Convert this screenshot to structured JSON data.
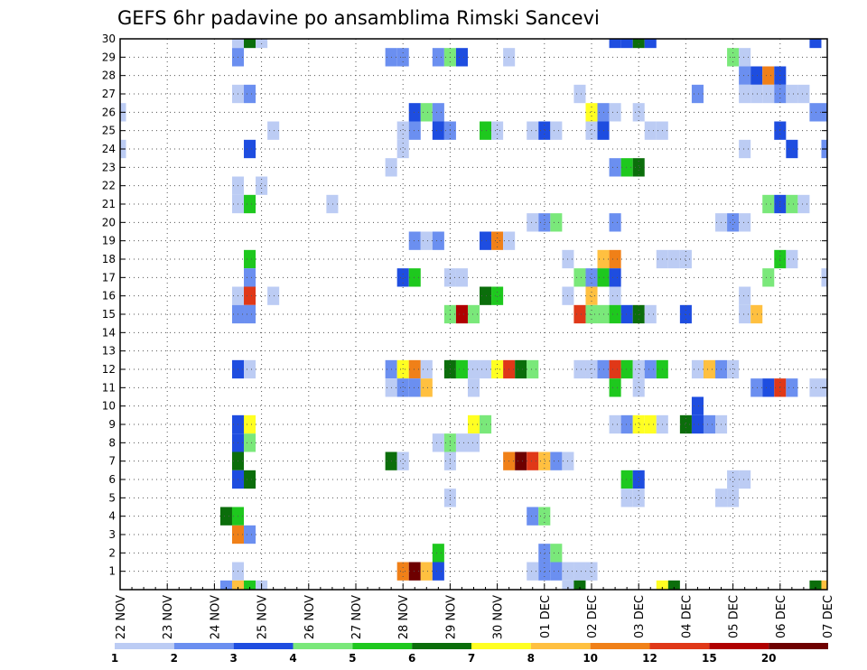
{
  "chart_data": {
    "type": "heatmap",
    "title": "GEFS 6hr padavine po ansamblima Rimski Sancevi",
    "xlabel": "",
    "ylabel": "",
    "x_ticks": [
      "22 NOV",
      "23 NOV",
      "24 NOV",
      "25 NOV",
      "26 NOV",
      "27 NOV",
      "28 NOV",
      "29 NOV",
      "30 NOV",
      "01 DEC",
      "02 DEC",
      "03 DEC",
      "04 DEC",
      "05 DEC",
      "06 DEC",
      "07 DEC"
    ],
    "x_unit": "6-hour steps from 22 NOV 00Z",
    "xlim": [
      0,
      60
    ],
    "y_ticks": [
      1,
      2,
      3,
      4,
      5,
      6,
      7,
      8,
      9,
      10,
      11,
      12,
      13,
      14,
      15,
      16,
      17,
      18,
      19,
      20,
      21,
      22,
      23,
      24,
      25,
      26,
      27,
      28,
      29,
      30
    ],
    "ylim": [
      0,
      30
    ],
    "grid": true,
    "colorbar": {
      "labels": [
        "1",
        "2",
        "3",
        "4",
        "5",
        "6",
        "7",
        "8",
        "10",
        "12",
        "15",
        "20"
      ],
      "colors": [
        "#bcccf4",
        "#6b8ff0",
        "#1e4de0",
        "#7ae87a",
        "#1ec81e",
        "#0b6e0b",
        "#ffff22",
        "#ffc040",
        "#f08018",
        "#e03818",
        "#b00000",
        "#6e0000"
      ]
    },
    "cells": [
      [
        10,
        30,
        1
      ],
      [
        11,
        30,
        6
      ],
      [
        12,
        30,
        1
      ],
      [
        42,
        30,
        3
      ],
      [
        43,
        30,
        3
      ],
      [
        44,
        30,
        6
      ],
      [
        45,
        30,
        3
      ],
      [
        59,
        30,
        3
      ],
      [
        10,
        29,
        2
      ],
      [
        23,
        29,
        2
      ],
      [
        24,
        29,
        2
      ],
      [
        27,
        29,
        2
      ],
      [
        28,
        29,
        4
      ],
      [
        29,
        29,
        3
      ],
      [
        33,
        29,
        1
      ],
      [
        52,
        29,
        4
      ],
      [
        53,
        29,
        1
      ],
      [
        53,
        28,
        2
      ],
      [
        54,
        28,
        3
      ],
      [
        55,
        28,
        9
      ],
      [
        56,
        28,
        3
      ],
      [
        10,
        27,
        1
      ],
      [
        11,
        27,
        2
      ],
      [
        39,
        27,
        1
      ],
      [
        49,
        27,
        2
      ],
      [
        53,
        27,
        1
      ],
      [
        54,
        27,
        1
      ],
      [
        55,
        27,
        1
      ],
      [
        56,
        27,
        2
      ],
      [
        57,
        27,
        1
      ],
      [
        58,
        27,
        1
      ],
      [
        0,
        26,
        1
      ],
      [
        25,
        26,
        3
      ],
      [
        26,
        26,
        4
      ],
      [
        27,
        26,
        2
      ],
      [
        40,
        26,
        7
      ],
      [
        41,
        26,
        2
      ],
      [
        42,
        26,
        1
      ],
      [
        44,
        26,
        1
      ],
      [
        59,
        26,
        2
      ],
      [
        60,
        26,
        2
      ],
      [
        13,
        25,
        1
      ],
      [
        24,
        25,
        1
      ],
      [
        25,
        25,
        2
      ],
      [
        27,
        25,
        3
      ],
      [
        28,
        25,
        2
      ],
      [
        31,
        25,
        5
      ],
      [
        32,
        25,
        1
      ],
      [
        35,
        25,
        1
      ],
      [
        36,
        25,
        3
      ],
      [
        37,
        25,
        1
      ],
      [
        40,
        25,
        1
      ],
      [
        41,
        25,
        3
      ],
      [
        45,
        25,
        1
      ],
      [
        46,
        25,
        1
      ],
      [
        56,
        25,
        3
      ],
      [
        0,
        24,
        1
      ],
      [
        11,
        24,
        3
      ],
      [
        24,
        24,
        1
      ],
      [
        53,
        24,
        1
      ],
      [
        57,
        24,
        3
      ],
      [
        60,
        24,
        2
      ],
      [
        23,
        23,
        1
      ],
      [
        42,
        23,
        2
      ],
      [
        43,
        23,
        5
      ],
      [
        44,
        23,
        6
      ],
      [
        10,
        22,
        1
      ],
      [
        12,
        22,
        1
      ],
      [
        10,
        21,
        1
      ],
      [
        11,
        21,
        5
      ],
      [
        18,
        21,
        1
      ],
      [
        55,
        21,
        4
      ],
      [
        56,
        21,
        3
      ],
      [
        57,
        21,
        4
      ],
      [
        58,
        21,
        1
      ],
      [
        35,
        20,
        1
      ],
      [
        36,
        20,
        2
      ],
      [
        37,
        20,
        4
      ],
      [
        42,
        20,
        2
      ],
      [
        51,
        20,
        1
      ],
      [
        52,
        20,
        2
      ],
      [
        53,
        20,
        1
      ],
      [
        25,
        19,
        2
      ],
      [
        26,
        19,
        1
      ],
      [
        27,
        19,
        2
      ],
      [
        31,
        19,
        3
      ],
      [
        32,
        19,
        9
      ],
      [
        33,
        19,
        1
      ],
      [
        11,
        18,
        5
      ],
      [
        38,
        18,
        1
      ],
      [
        41,
        18,
        8
      ],
      [
        42,
        18,
        9
      ],
      [
        46,
        18,
        1
      ],
      [
        47,
        18,
        1
      ],
      [
        48,
        18,
        1
      ],
      [
        56,
        18,
        5
      ],
      [
        57,
        18,
        1
      ],
      [
        11,
        17,
        2
      ],
      [
        24,
        17,
        3
      ],
      [
        25,
        17,
        5
      ],
      [
        28,
        17,
        1
      ],
      [
        29,
        17,
        1
      ],
      [
        39,
        17,
        4
      ],
      [
        40,
        17,
        2
      ],
      [
        41,
        17,
        5
      ],
      [
        42,
        17,
        3
      ],
      [
        55,
        17,
        4
      ],
      [
        60,
        17,
        1
      ],
      [
        10,
        16,
        1
      ],
      [
        11,
        16,
        10
      ],
      [
        13,
        16,
        1
      ],
      [
        31,
        16,
        6
      ],
      [
        32,
        16,
        5
      ],
      [
        38,
        16,
        1
      ],
      [
        40,
        16,
        8
      ],
      [
        42,
        16,
        1
      ],
      [
        53,
        16,
        1
      ],
      [
        10,
        15,
        2
      ],
      [
        11,
        15,
        2
      ],
      [
        28,
        15,
        4
      ],
      [
        29,
        15,
        11
      ],
      [
        30,
        15,
        4
      ],
      [
        39,
        15,
        10
      ],
      [
        40,
        15,
        4
      ],
      [
        41,
        15,
        4
      ],
      [
        42,
        15,
        5
      ],
      [
        43,
        15,
        3
      ],
      [
        44,
        15,
        6
      ],
      [
        45,
        15,
        1
      ],
      [
        48,
        15,
        3
      ],
      [
        53,
        15,
        1
      ],
      [
        54,
        15,
        8
      ],
      [
        10,
        12,
        3
      ],
      [
        11,
        12,
        1
      ],
      [
        23,
        12,
        2
      ],
      [
        24,
        12,
        7
      ],
      [
        25,
        12,
        9
      ],
      [
        26,
        12,
        1
      ],
      [
        28,
        12,
        6
      ],
      [
        29,
        12,
        5
      ],
      [
        30,
        12,
        1
      ],
      [
        31,
        12,
        1
      ],
      [
        32,
        12,
        7
      ],
      [
        33,
        12,
        10
      ],
      [
        34,
        12,
        6
      ],
      [
        35,
        12,
        4
      ],
      [
        39,
        12,
        1
      ],
      [
        40,
        12,
        1
      ],
      [
        41,
        12,
        2
      ],
      [
        42,
        12,
        10
      ],
      [
        43,
        12,
        5
      ],
      [
        44,
        12,
        1
      ],
      [
        45,
        12,
        2
      ],
      [
        46,
        12,
        5
      ],
      [
        49,
        12,
        1
      ],
      [
        50,
        12,
        8
      ],
      [
        51,
        12,
        2
      ],
      [
        52,
        12,
        1
      ],
      [
        23,
        11,
        1
      ],
      [
        24,
        11,
        2
      ],
      [
        25,
        11,
        2
      ],
      [
        26,
        11,
        8
      ],
      [
        30,
        11,
        1
      ],
      [
        42,
        11,
        5
      ],
      [
        44,
        11,
        1
      ],
      [
        54,
        11,
        2
      ],
      [
        55,
        11,
        3
      ],
      [
        56,
        11,
        10
      ],
      [
        57,
        11,
        2
      ],
      [
        59,
        11,
        1
      ],
      [
        60,
        11,
        1
      ],
      [
        49,
        10,
        3
      ],
      [
        10,
        9,
        3
      ],
      [
        11,
        9,
        7
      ],
      [
        30,
        9,
        7
      ],
      [
        31,
        9,
        4
      ],
      [
        42,
        9,
        1
      ],
      [
        43,
        9,
        2
      ],
      [
        44,
        9,
        7
      ],
      [
        45,
        9,
        7
      ],
      [
        46,
        9,
        1
      ],
      [
        48,
        9,
        6
      ],
      [
        49,
        9,
        3
      ],
      [
        50,
        9,
        2
      ],
      [
        51,
        9,
        1
      ],
      [
        10,
        8,
        3
      ],
      [
        11,
        8,
        4
      ],
      [
        27,
        8,
        1
      ],
      [
        28,
        8,
        4
      ],
      [
        29,
        8,
        1
      ],
      [
        30,
        8,
        1
      ],
      [
        10,
        7,
        6
      ],
      [
        23,
        7,
        6
      ],
      [
        24,
        7,
        1
      ],
      [
        28,
        7,
        1
      ],
      [
        33,
        7,
        9
      ],
      [
        34,
        7,
        12
      ],
      [
        35,
        7,
        10
      ],
      [
        36,
        7,
        8
      ],
      [
        37,
        7,
        2
      ],
      [
        38,
        7,
        1
      ],
      [
        10,
        6,
        3
      ],
      [
        11,
        6,
        6
      ],
      [
        43,
        6,
        5
      ],
      [
        44,
        6,
        3
      ],
      [
        52,
        6,
        1
      ],
      [
        53,
        6,
        1
      ],
      [
        28,
        5,
        1
      ],
      [
        43,
        5,
        1
      ],
      [
        44,
        5,
        1
      ],
      [
        51,
        5,
        1
      ],
      [
        52,
        5,
        1
      ],
      [
        9,
        4,
        6
      ],
      [
        10,
        4,
        5
      ],
      [
        35,
        4,
        2
      ],
      [
        36,
        4,
        4
      ],
      [
        10,
        3,
        9
      ],
      [
        11,
        3,
        2
      ],
      [
        27,
        2,
        5
      ],
      [
        36,
        2,
        2
      ],
      [
        37,
        2,
        4
      ],
      [
        10,
        1,
        1
      ],
      [
        24,
        1,
        9
      ],
      [
        25,
        1,
        12
      ],
      [
        26,
        1,
        8
      ],
      [
        27,
        1,
        3
      ],
      [
        35,
        1,
        1
      ],
      [
        36,
        1,
        2
      ],
      [
        37,
        1,
        2
      ],
      [
        38,
        1,
        1
      ],
      [
        39,
        1,
        1
      ],
      [
        40,
        1,
        1
      ],
      [
        9,
        0,
        2
      ],
      [
        10,
        0,
        8
      ],
      [
        11,
        0,
        5
      ],
      [
        12,
        0,
        1
      ],
      [
        38,
        0,
        1
      ],
      [
        39,
        0,
        6
      ],
      [
        46,
        0,
        7
      ],
      [
        47,
        0,
        6
      ],
      [
        59,
        0,
        6
      ],
      [
        60,
        0,
        8
      ]
    ]
  }
}
